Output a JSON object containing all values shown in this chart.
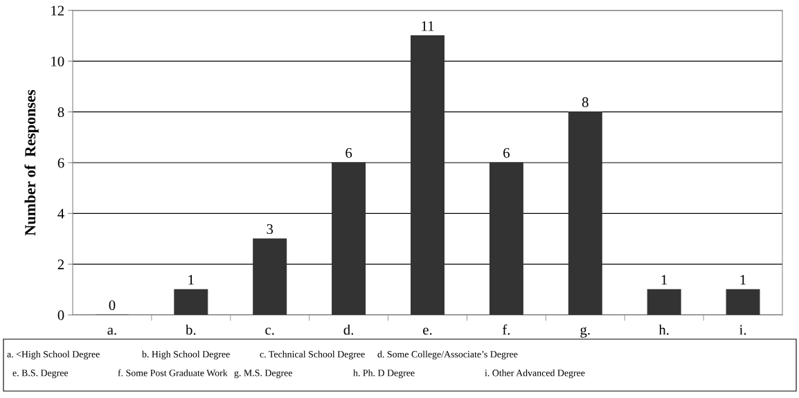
{
  "chart_data": {
    "type": "bar",
    "categories": [
      "a.",
      "b.",
      "c.",
      "d.",
      "e.",
      "f.",
      "g.",
      "h.",
      "i."
    ],
    "values": [
      0,
      1,
      3,
      6,
      11,
      6,
      8,
      1,
      1
    ],
    "color": "#333333",
    "ylabel": "Number of  Responses",
    "ylim": [
      0,
      12
    ],
    "yticks": [
      0,
      2,
      4,
      6,
      8,
      10,
      12
    ],
    "grid": "y",
    "data_labels": true,
    "annotations": [
      "a. <High School Degree",
      "b. High School Degree",
      "c. Technical School Degree",
      "d. Some College/Associate’s Degree",
      "e. B.S. Degree",
      "f. Some Post Graduate Work",
      "g. M.S. Degree",
      "h. Ph. D Degree",
      "i. Other Advanced Degree"
    ]
  }
}
